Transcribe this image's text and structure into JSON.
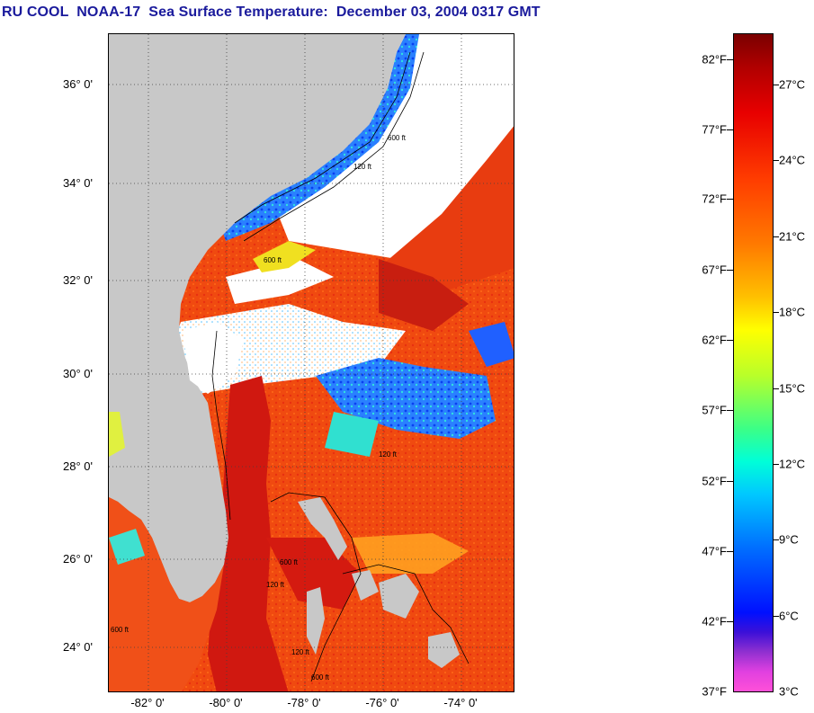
{
  "header": {
    "title": "RU COOL  NOAA-17  Sea Surface Temperature:  December 03, 2004 0317 GMT"
  },
  "map": {
    "lat_labels": [
      "36° 0'",
      "34° 0'",
      "32° 0'",
      "30° 0'",
      "28° 0'",
      "26° 0'",
      "24° 0'"
    ],
    "lon_labels": [
      "-82° 0'",
      "-80° 0'",
      "-78° 0'",
      "-76° 0'",
      "-74° 0'"
    ],
    "contour_labels": [
      "120 ft",
      "600 ft",
      "600 ft",
      "120 ft",
      "600 ft",
      "120 ft",
      "600 ft",
      "120 ft",
      "600 ft"
    ]
  },
  "colorbar": {
    "fahrenheit_labels": [
      "82°F",
      "77°F",
      "72°F",
      "67°F",
      "62°F",
      "57°F",
      "52°F",
      "47°F",
      "42°F",
      "37°F"
    ],
    "celsius_labels": [
      "27°C",
      "24°C",
      "21°C",
      "18°C",
      "15°C",
      "12°C",
      "9°C",
      "6°C",
      "3°C"
    ]
  },
  "colors": {
    "title": "#1a1a9c",
    "land": "#c8c8c8",
    "cloud": "#ffffff",
    "warm_gulf_stream": "#d42010",
    "shelf_cool": "#1060ff"
  }
}
